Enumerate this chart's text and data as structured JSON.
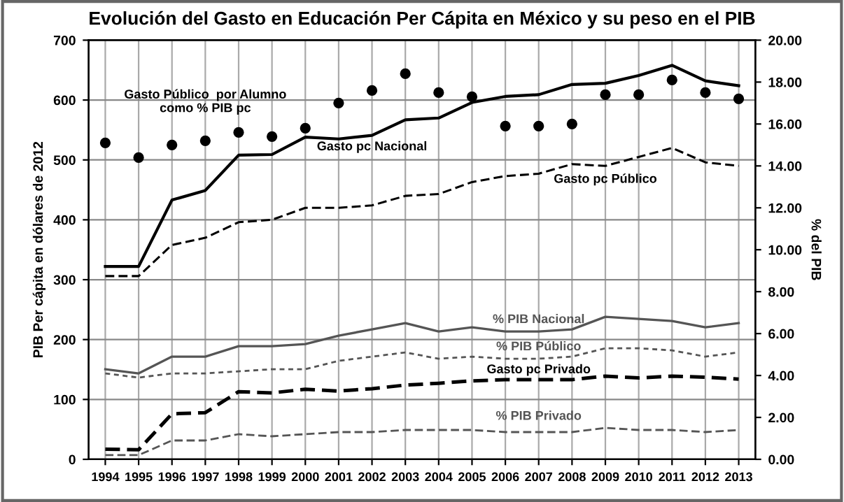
{
  "chart_data": {
    "type": "line",
    "title": "Evolución del Gasto en Educación Per Cápita en México y su peso en el PIB",
    "ylabel": "PIB Per cápita en dólares de 2012",
    "y2label": "% del PIB",
    "categories": [
      "1994",
      "1995",
      "1996",
      "1997",
      "1998",
      "1999",
      "2000",
      "2001",
      "2002",
      "2003",
      "2004",
      "2005",
      "2006",
      "2007",
      "2008",
      "2009",
      "2010",
      "2011",
      "2012",
      "2013"
    ],
    "ylim": [
      0,
      700
    ],
    "yticks": [
      0,
      100,
      200,
      300,
      400,
      500,
      600,
      700
    ],
    "y2lim": [
      0,
      20
    ],
    "y2ticks": [
      {
        "value": 0,
        "label": "0.00"
      },
      {
        "value": 2,
        "label": "2.00"
      },
      {
        "value": 4,
        "label": "4.00"
      },
      {
        "value": 6,
        "label": "6.00"
      },
      {
        "value": 8,
        "label": "8.00"
      },
      {
        "value": 10,
        "label": "10.00"
      },
      {
        "value": 12,
        "label": "12.00"
      },
      {
        "value": 14,
        "label": "14.00"
      },
      {
        "value": 16,
        "label": "16.00"
      },
      {
        "value": 18,
        "label": "18.00"
      },
      {
        "value": 20,
        "label": "20.00"
      }
    ],
    "grid": true,
    "legend": false,
    "series": [
      {
        "name": "Gasto Público  por Alumno\ncomo % PIB pc",
        "color": "#000000",
        "axis": "y2",
        "type": "scatter",
        "marker": "circle",
        "values": [
          15.1,
          14.4,
          15.0,
          15.2,
          15.6,
          15.4,
          15.8,
          17.0,
          17.6,
          18.4,
          17.5,
          17.3,
          15.9,
          15.9,
          16.0,
          17.4,
          17.4,
          18.1,
          17.5,
          17.2
        ]
      },
      {
        "name": "Gasto pc Nacional",
        "color": "#000000",
        "line_style": "solid",
        "values": [
          322,
          322,
          433,
          449,
          508,
          509,
          538,
          535,
          541,
          567,
          570,
          596,
          606,
          609,
          626,
          628,
          641,
          658,
          632,
          624
        ]
      },
      {
        "name": "Gasto pc Público",
        "color": "#000000",
        "line_style": "dashed",
        "values": [
          306,
          306,
          358,
          370,
          396,
          400,
          420,
          420,
          424,
          440,
          443,
          463,
          473,
          477,
          493,
          490,
          505,
          520,
          496,
          490
        ]
      },
      {
        "name": "% PIB Nacional",
        "color": "#555555",
        "axis": "y2",
        "line_style": "solid",
        "values": [
          4.3,
          4.1,
          4.9,
          4.9,
          5.4,
          5.4,
          5.5,
          5.9,
          6.2,
          6.5,
          6.1,
          6.3,
          6.1,
          6.1,
          6.2,
          6.8,
          6.7,
          6.6,
          6.3,
          6.5
        ]
      },
      {
        "name": "% PIB Público",
        "color": "#555555",
        "axis": "y2",
        "line_style": "dotted",
        "values": [
          4.1,
          3.9,
          4.1,
          4.1,
          4.2,
          4.3,
          4.3,
          4.7,
          4.9,
          5.1,
          4.8,
          4.9,
          4.8,
          4.8,
          4.9,
          5.3,
          5.3,
          5.2,
          4.9,
          5.1
        ]
      },
      {
        "name": "Gasto pc Privado",
        "color": "#000000",
        "line_style": "dashed",
        "values": [
          17,
          16,
          76,
          78,
          113,
          111,
          117,
          114,
          118,
          124,
          127,
          131,
          133,
          133,
          133,
          139,
          136,
          139,
          137,
          134
        ]
      },
      {
        "name": "% PIB Privado",
        "color": "#555555",
        "axis": "y2",
        "line_style": "dashed",
        "values": [
          0.2,
          0.2,
          0.9,
          0.9,
          1.2,
          1.1,
          1.2,
          1.3,
          1.3,
          1.4,
          1.4,
          1.4,
          1.3,
          1.3,
          1.3,
          1.5,
          1.4,
          1.4,
          1.3,
          1.4
        ]
      }
    ]
  }
}
